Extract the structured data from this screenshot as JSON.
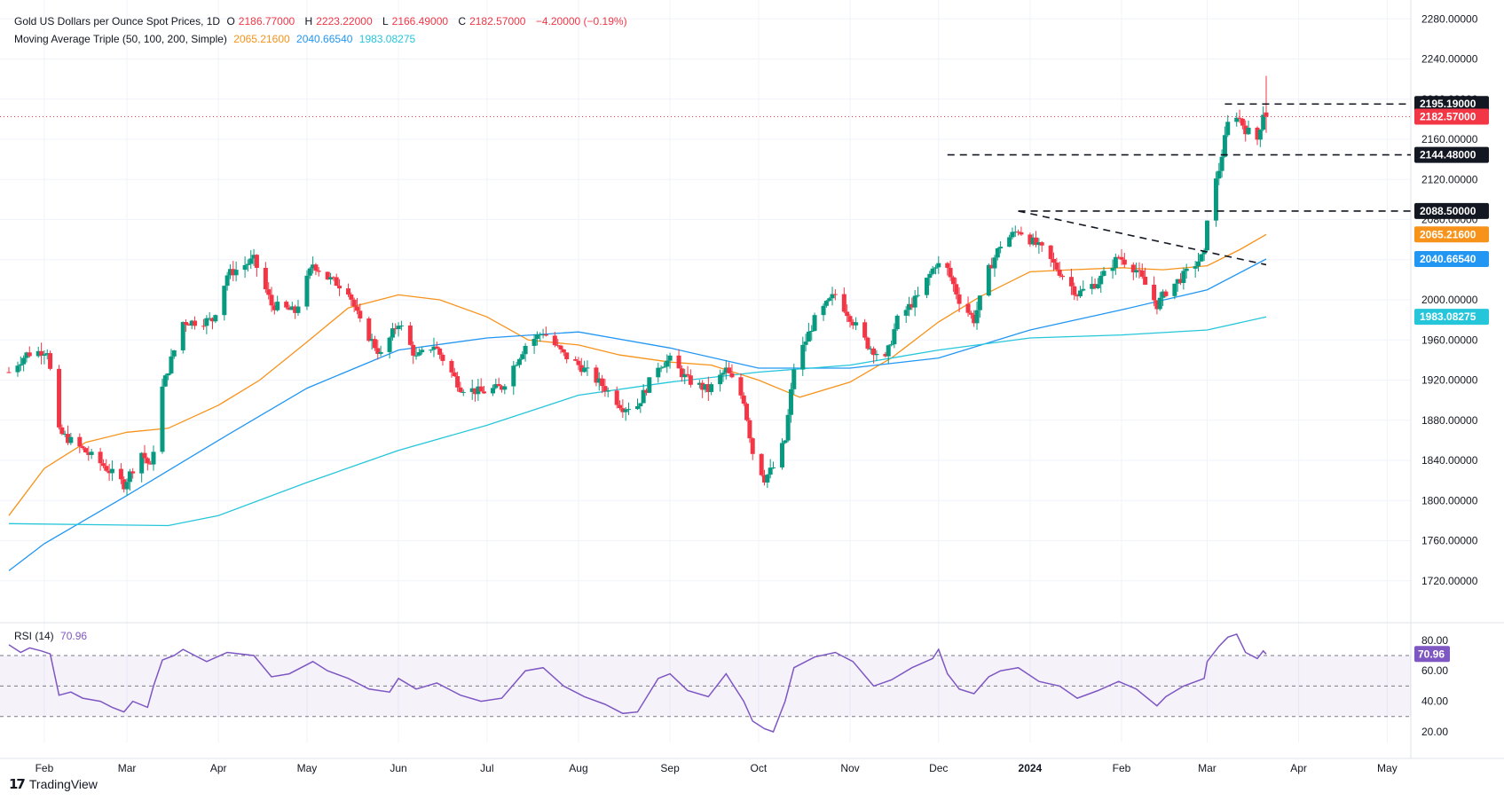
{
  "header": {
    "title": "Gold US Dollars per Ounce Spot Prices, 1D",
    "ohlc": [
      {
        "label": "O",
        "value": "2186.77000"
      },
      {
        "label": "H",
        "value": "2223.22000"
      },
      {
        "label": "L",
        "value": "2166.49000"
      },
      {
        "label": "C",
        "value": "2182.57000"
      }
    ],
    "change": "−4.20000 (−0.19%)",
    "ma_title": "Moving Average Triple (50, 100, 200, Simple)",
    "ma_values": [
      "2065.21600",
      "2040.66540",
      "1983.08275"
    ],
    "rsi_title": "RSI (14)",
    "rsi_value": "70.96"
  },
  "brand": {
    "logo": "17",
    "name": "TradingView"
  },
  "colors": {
    "up": "#089981",
    "down": "#f23645",
    "ma50": "#f7931a",
    "ma100": "#2196f3",
    "ma200": "#26c6da",
    "rsi": "#7e57c2",
    "last_price": "#f23645",
    "level": "#131722"
  },
  "chart_data": [
    {
      "type": "candlestick",
      "title": "Gold US Dollars per Ounce Spot Prices, 1D",
      "x_range": [
        "2023-01-20",
        "2024-05-06"
      ],
      "y_range": [
        1680,
        2290
      ],
      "y_ticks": [
        1720,
        1760,
        1800,
        1840,
        1880,
        1920,
        1960,
        2000,
        2040,
        2080,
        2120,
        2160,
        2200,
        2240,
        2280
      ],
      "x_tick_labels": [
        {
          "date": "2023-02-01",
          "label": "Feb"
        },
        {
          "date": "2023-03-01",
          "label": "Mar"
        },
        {
          "date": "2023-04-01",
          "label": "Apr"
        },
        {
          "date": "2023-05-01",
          "label": "May"
        },
        {
          "date": "2023-06-01",
          "label": "Jun"
        },
        {
          "date": "2023-07-01",
          "label": "Jul"
        },
        {
          "date": "2023-08-01",
          "label": "Aug"
        },
        {
          "date": "2023-09-01",
          "label": "Sep"
        },
        {
          "date": "2023-10-01",
          "label": "Oct"
        },
        {
          "date": "2023-11-01",
          "label": "Nov"
        },
        {
          "date": "2023-12-01",
          "label": "Dec"
        },
        {
          "date": "2024-01-01",
          "label": "2024",
          "bold": true
        },
        {
          "date": "2024-02-01",
          "label": "Feb"
        },
        {
          "date": "2024-03-01",
          "label": "Mar"
        },
        {
          "date": "2024-04-01",
          "label": "Apr"
        },
        {
          "date": "2024-05-01",
          "label": "May"
        }
      ],
      "price_path": [
        [
          "2023-01-20",
          1928
        ],
        [
          "2023-01-26",
          1946
        ],
        [
          "2023-02-02",
          1950
        ],
        [
          "2023-02-06",
          1868
        ],
        [
          "2023-02-13",
          1853
        ],
        [
          "2023-02-21",
          1835
        ],
        [
          "2023-02-28",
          1816
        ],
        [
          "2023-03-06",
          1848
        ],
        [
          "2023-03-09",
          1832
        ],
        [
          "2023-03-13",
          1912
        ],
        [
          "2023-03-20",
          1978
        ],
        [
          "2023-03-24",
          1978
        ],
        [
          "2023-03-30",
          1980
        ],
        [
          "2023-04-04",
          2025
        ],
        [
          "2023-04-13",
          2040
        ],
        [
          "2023-04-19",
          1995
        ],
        [
          "2023-04-27",
          1988
        ],
        [
          "2023-05-03",
          2036
        ],
        [
          "2023-05-08",
          2022
        ],
        [
          "2023-05-15",
          2010
        ],
        [
          "2023-05-19",
          1977
        ],
        [
          "2023-05-26",
          1945
        ],
        [
          "2023-06-01",
          1978
        ],
        [
          "2023-06-07",
          1942
        ],
        [
          "2023-06-13",
          1955
        ],
        [
          "2023-06-22",
          1913
        ],
        [
          "2023-06-29",
          1908
        ],
        [
          "2023-07-06",
          1913
        ],
        [
          "2023-07-14",
          1955
        ],
        [
          "2023-07-20",
          1968
        ],
        [
          "2023-07-27",
          1945
        ],
        [
          "2023-08-02",
          1933
        ],
        [
          "2023-08-09",
          1915
        ],
        [
          "2023-08-16",
          1893
        ],
        [
          "2023-08-21",
          1895
        ],
        [
          "2023-08-28",
          1935
        ],
        [
          "2023-09-01",
          1940
        ],
        [
          "2023-09-07",
          1920
        ],
        [
          "2023-09-14",
          1910
        ],
        [
          "2023-09-20",
          1930
        ],
        [
          "2023-09-26",
          1900
        ],
        [
          "2023-09-29",
          1848
        ],
        [
          "2023-10-03",
          1822
        ],
        [
          "2023-10-06",
          1833
        ],
        [
          "2023-10-10",
          1860
        ],
        [
          "2023-10-13",
          1932
        ],
        [
          "2023-10-20",
          1980
        ],
        [
          "2023-10-27",
          2006
        ],
        [
          "2023-11-01",
          1983
        ],
        [
          "2023-11-07",
          1955
        ],
        [
          "2023-11-13",
          1940
        ],
        [
          "2023-11-17",
          1980
        ],
        [
          "2023-11-24",
          2003
        ],
        [
          "2023-11-30",
          2036
        ],
        [
          "2023-12-04",
          2030
        ],
        [
          "2023-12-08",
          2000
        ],
        [
          "2023-12-13",
          1980
        ],
        [
          "2023-12-18",
          2030
        ],
        [
          "2023-12-22",
          2055
        ],
        [
          "2023-12-28",
          2070
        ],
        [
          "2024-01-05",
          2050
        ],
        [
          "2024-01-11",
          2028
        ],
        [
          "2024-01-17",
          2006
        ],
        [
          "2024-01-24",
          2018
        ],
        [
          "2024-01-31",
          2043
        ],
        [
          "2024-02-06",
          2030
        ],
        [
          "2024-02-13",
          1995
        ],
        [
          "2024-02-16",
          2008
        ],
        [
          "2024-02-22",
          2024
        ],
        [
          "2024-02-29",
          2045
        ],
        [
          "2024-03-01",
          2083
        ],
        [
          "2024-03-05",
          2130
        ],
        [
          "2024-03-08",
          2175
        ],
        [
          "2024-03-11",
          2185
        ],
        [
          "2024-03-14",
          2170
        ],
        [
          "2024-03-18",
          2160
        ],
        [
          "2024-03-20",
          2187
        ],
        [
          "2024-03-21",
          2183
        ]
      ],
      "last_candle": {
        "date": "2024-03-21",
        "open": 2186.77,
        "high": 2223.22,
        "low": 2166.49,
        "close": 2182.57
      },
      "price_line": 2182.57,
      "levels": [
        {
          "value": 2195.19,
          "from": "2024-03-07",
          "label": "2195.19000"
        },
        {
          "value": 2144.48,
          "from": "2023-12-04",
          "label": "2144.48000"
        },
        {
          "value": 2088.5,
          "from": "2023-12-28",
          "label": "2088.50000"
        }
      ],
      "trendline": [
        [
          "2023-12-28",
          2088.5
        ],
        [
          "2024-03-21",
          2035
        ]
      ],
      "series": [
        {
          "name": "MA 50",
          "color": "#f7931a",
          "label": "2065.21600",
          "points": [
            [
              "2023-01-20",
              1785
            ],
            [
              "2023-02-01",
              1832
            ],
            [
              "2023-02-15",
              1858
            ],
            [
              "2023-03-01",
              1868
            ],
            [
              "2023-03-15",
              1872
            ],
            [
              "2023-04-01",
              1895
            ],
            [
              "2023-04-15",
              1920
            ],
            [
              "2023-05-01",
              1958
            ],
            [
              "2023-05-15",
              1992
            ],
            [
              "2023-06-01",
              2005
            ],
            [
              "2023-06-15",
              2000
            ],
            [
              "2023-07-01",
              1983
            ],
            [
              "2023-07-15",
              1960
            ],
            [
              "2023-08-01",
              1955
            ],
            [
              "2023-08-15",
              1945
            ],
            [
              "2023-09-01",
              1938
            ],
            [
              "2023-09-15",
              1935
            ],
            [
              "2023-10-01",
              1920
            ],
            [
              "2023-10-15",
              1903
            ],
            [
              "2023-11-01",
              1918
            ],
            [
              "2023-11-15",
              1942
            ],
            [
              "2023-12-01",
              1978
            ],
            [
              "2023-12-15",
              2003
            ],
            [
              "2024-01-01",
              2028
            ],
            [
              "2024-01-15",
              2030
            ],
            [
              "2024-02-01",
              2032
            ],
            [
              "2024-02-15",
              2030
            ],
            [
              "2024-03-01",
              2034
            ],
            [
              "2024-03-12",
              2050
            ],
            [
              "2024-03-21",
              2065.216
            ]
          ]
        },
        {
          "name": "MA 100",
          "color": "#2196f3",
          "label": "2040.66540",
          "points": [
            [
              "2023-01-20",
              1730
            ],
            [
              "2023-02-01",
              1757
            ],
            [
              "2023-03-01",
              1805
            ],
            [
              "2023-04-01",
              1860
            ],
            [
              "2023-05-01",
              1912
            ],
            [
              "2023-06-01",
              1950
            ],
            [
              "2023-07-01",
              1962
            ],
            [
              "2023-08-01",
              1968
            ],
            [
              "2023-09-01",
              1952
            ],
            [
              "2023-10-01",
              1932
            ],
            [
              "2023-11-01",
              1932
            ],
            [
              "2023-12-01",
              1942
            ],
            [
              "2024-01-01",
              1970
            ],
            [
              "2024-02-01",
              1990
            ],
            [
              "2024-03-01",
              2010
            ],
            [
              "2024-03-21",
              2040.665
            ]
          ]
        },
        {
          "name": "MA 200",
          "color": "#26c6da",
          "label": "1983.08275",
          "points": [
            [
              "2023-01-20",
              1777
            ],
            [
              "2023-03-15",
              1775
            ],
            [
              "2023-04-01",
              1785
            ],
            [
              "2023-05-01",
              1818
            ],
            [
              "2023-06-01",
              1850
            ],
            [
              "2023-07-01",
              1875
            ],
            [
              "2023-08-01",
              1905
            ],
            [
              "2023-09-01",
              1918
            ],
            [
              "2023-10-01",
              1928
            ],
            [
              "2023-11-01",
              1935
            ],
            [
              "2023-12-01",
              1950
            ],
            [
              "2024-01-01",
              1962
            ],
            [
              "2024-02-01",
              1965
            ],
            [
              "2024-03-01",
              1970
            ],
            [
              "2024-03-21",
              1983.083
            ]
          ]
        }
      ]
    },
    {
      "type": "line",
      "title": "RSI (14)",
      "y_range": [
        13,
        88
      ],
      "y_ticks": [
        20,
        40,
        60,
        80
      ],
      "bands": [
        30,
        50,
        70
      ],
      "last_label": "70.96",
      "series": [
        {
          "name": "RSI (14)",
          "color": "#7e57c2",
          "points": [
            [
              "2023-01-20",
              77
            ],
            [
              "2023-01-24",
              72
            ],
            [
              "2023-01-27",
              75
            ],
            [
              "2023-01-31",
              73
            ],
            [
              "2023-02-03",
              71
            ],
            [
              "2023-02-06",
              44
            ],
            [
              "2023-02-10",
              46
            ],
            [
              "2023-02-14",
              42
            ],
            [
              "2023-02-20",
              40
            ],
            [
              "2023-02-24",
              36
            ],
            [
              "2023-02-28",
              33
            ],
            [
              "2023-03-03",
              40
            ],
            [
              "2023-03-08",
              36
            ],
            [
              "2023-03-10",
              50
            ],
            [
              "2023-03-13",
              67
            ],
            [
              "2023-03-17",
              70
            ],
            [
              "2023-03-20",
              74
            ],
            [
              "2023-03-24",
              70
            ],
            [
              "2023-03-28",
              66
            ],
            [
              "2023-04-04",
              72
            ],
            [
              "2023-04-13",
              70
            ],
            [
              "2023-04-19",
              56
            ],
            [
              "2023-04-25",
              58
            ],
            [
              "2023-05-03",
              66
            ],
            [
              "2023-05-08",
              60
            ],
            [
              "2023-05-15",
              55
            ],
            [
              "2023-05-22",
              48
            ],
            [
              "2023-05-29",
              46
            ],
            [
              "2023-06-01",
              55
            ],
            [
              "2023-06-07",
              48
            ],
            [
              "2023-06-14",
              52
            ],
            [
              "2023-06-22",
              44
            ],
            [
              "2023-06-29",
              40
            ],
            [
              "2023-07-06",
              42
            ],
            [
              "2023-07-14",
              60
            ],
            [
              "2023-07-20",
              62
            ],
            [
              "2023-07-27",
              50
            ],
            [
              "2023-08-03",
              43
            ],
            [
              "2023-08-10",
              38
            ],
            [
              "2023-08-16",
              32
            ],
            [
              "2023-08-21",
              33
            ],
            [
              "2023-08-28",
              55
            ],
            [
              "2023-09-01",
              58
            ],
            [
              "2023-09-07",
              47
            ],
            [
              "2023-09-14",
              43
            ],
            [
              "2023-09-20",
              58
            ],
            [
              "2023-09-26",
              40
            ],
            [
              "2023-09-29",
              27
            ],
            [
              "2023-10-03",
              22
            ],
            [
              "2023-10-06",
              20
            ],
            [
              "2023-10-10",
              40
            ],
            [
              "2023-10-13",
              62
            ],
            [
              "2023-10-20",
              69
            ],
            [
              "2023-10-27",
              72
            ],
            [
              "2023-11-02",
              66
            ],
            [
              "2023-11-09",
              50
            ],
            [
              "2023-11-15",
              54
            ],
            [
              "2023-11-22",
              62
            ],
            [
              "2023-11-29",
              68
            ],
            [
              "2023-12-01",
              74
            ],
            [
              "2023-12-04",
              58
            ],
            [
              "2023-12-08",
              48
            ],
            [
              "2023-12-13",
              45
            ],
            [
              "2023-12-18",
              56
            ],
            [
              "2023-12-22",
              60
            ],
            [
              "2023-12-28",
              62
            ],
            [
              "2024-01-04",
              53
            ],
            [
              "2024-01-11",
              50
            ],
            [
              "2024-01-17",
              42
            ],
            [
              "2024-01-24",
              47
            ],
            [
              "2024-01-31",
              53
            ],
            [
              "2024-02-06",
              48
            ],
            [
              "2024-02-13",
              37
            ],
            [
              "2024-02-16",
              43
            ],
            [
              "2024-02-22",
              50
            ],
            [
              "2024-02-29",
              55
            ],
            [
              "2024-03-01",
              66
            ],
            [
              "2024-03-05",
              76
            ],
            [
              "2024-03-08",
              82
            ],
            [
              "2024-03-11",
              84
            ],
            [
              "2024-03-14",
              72
            ],
            [
              "2024-03-18",
              68
            ],
            [
              "2024-03-20",
              73
            ],
            [
              "2024-03-21",
              70.96
            ]
          ]
        }
      ]
    }
  ]
}
